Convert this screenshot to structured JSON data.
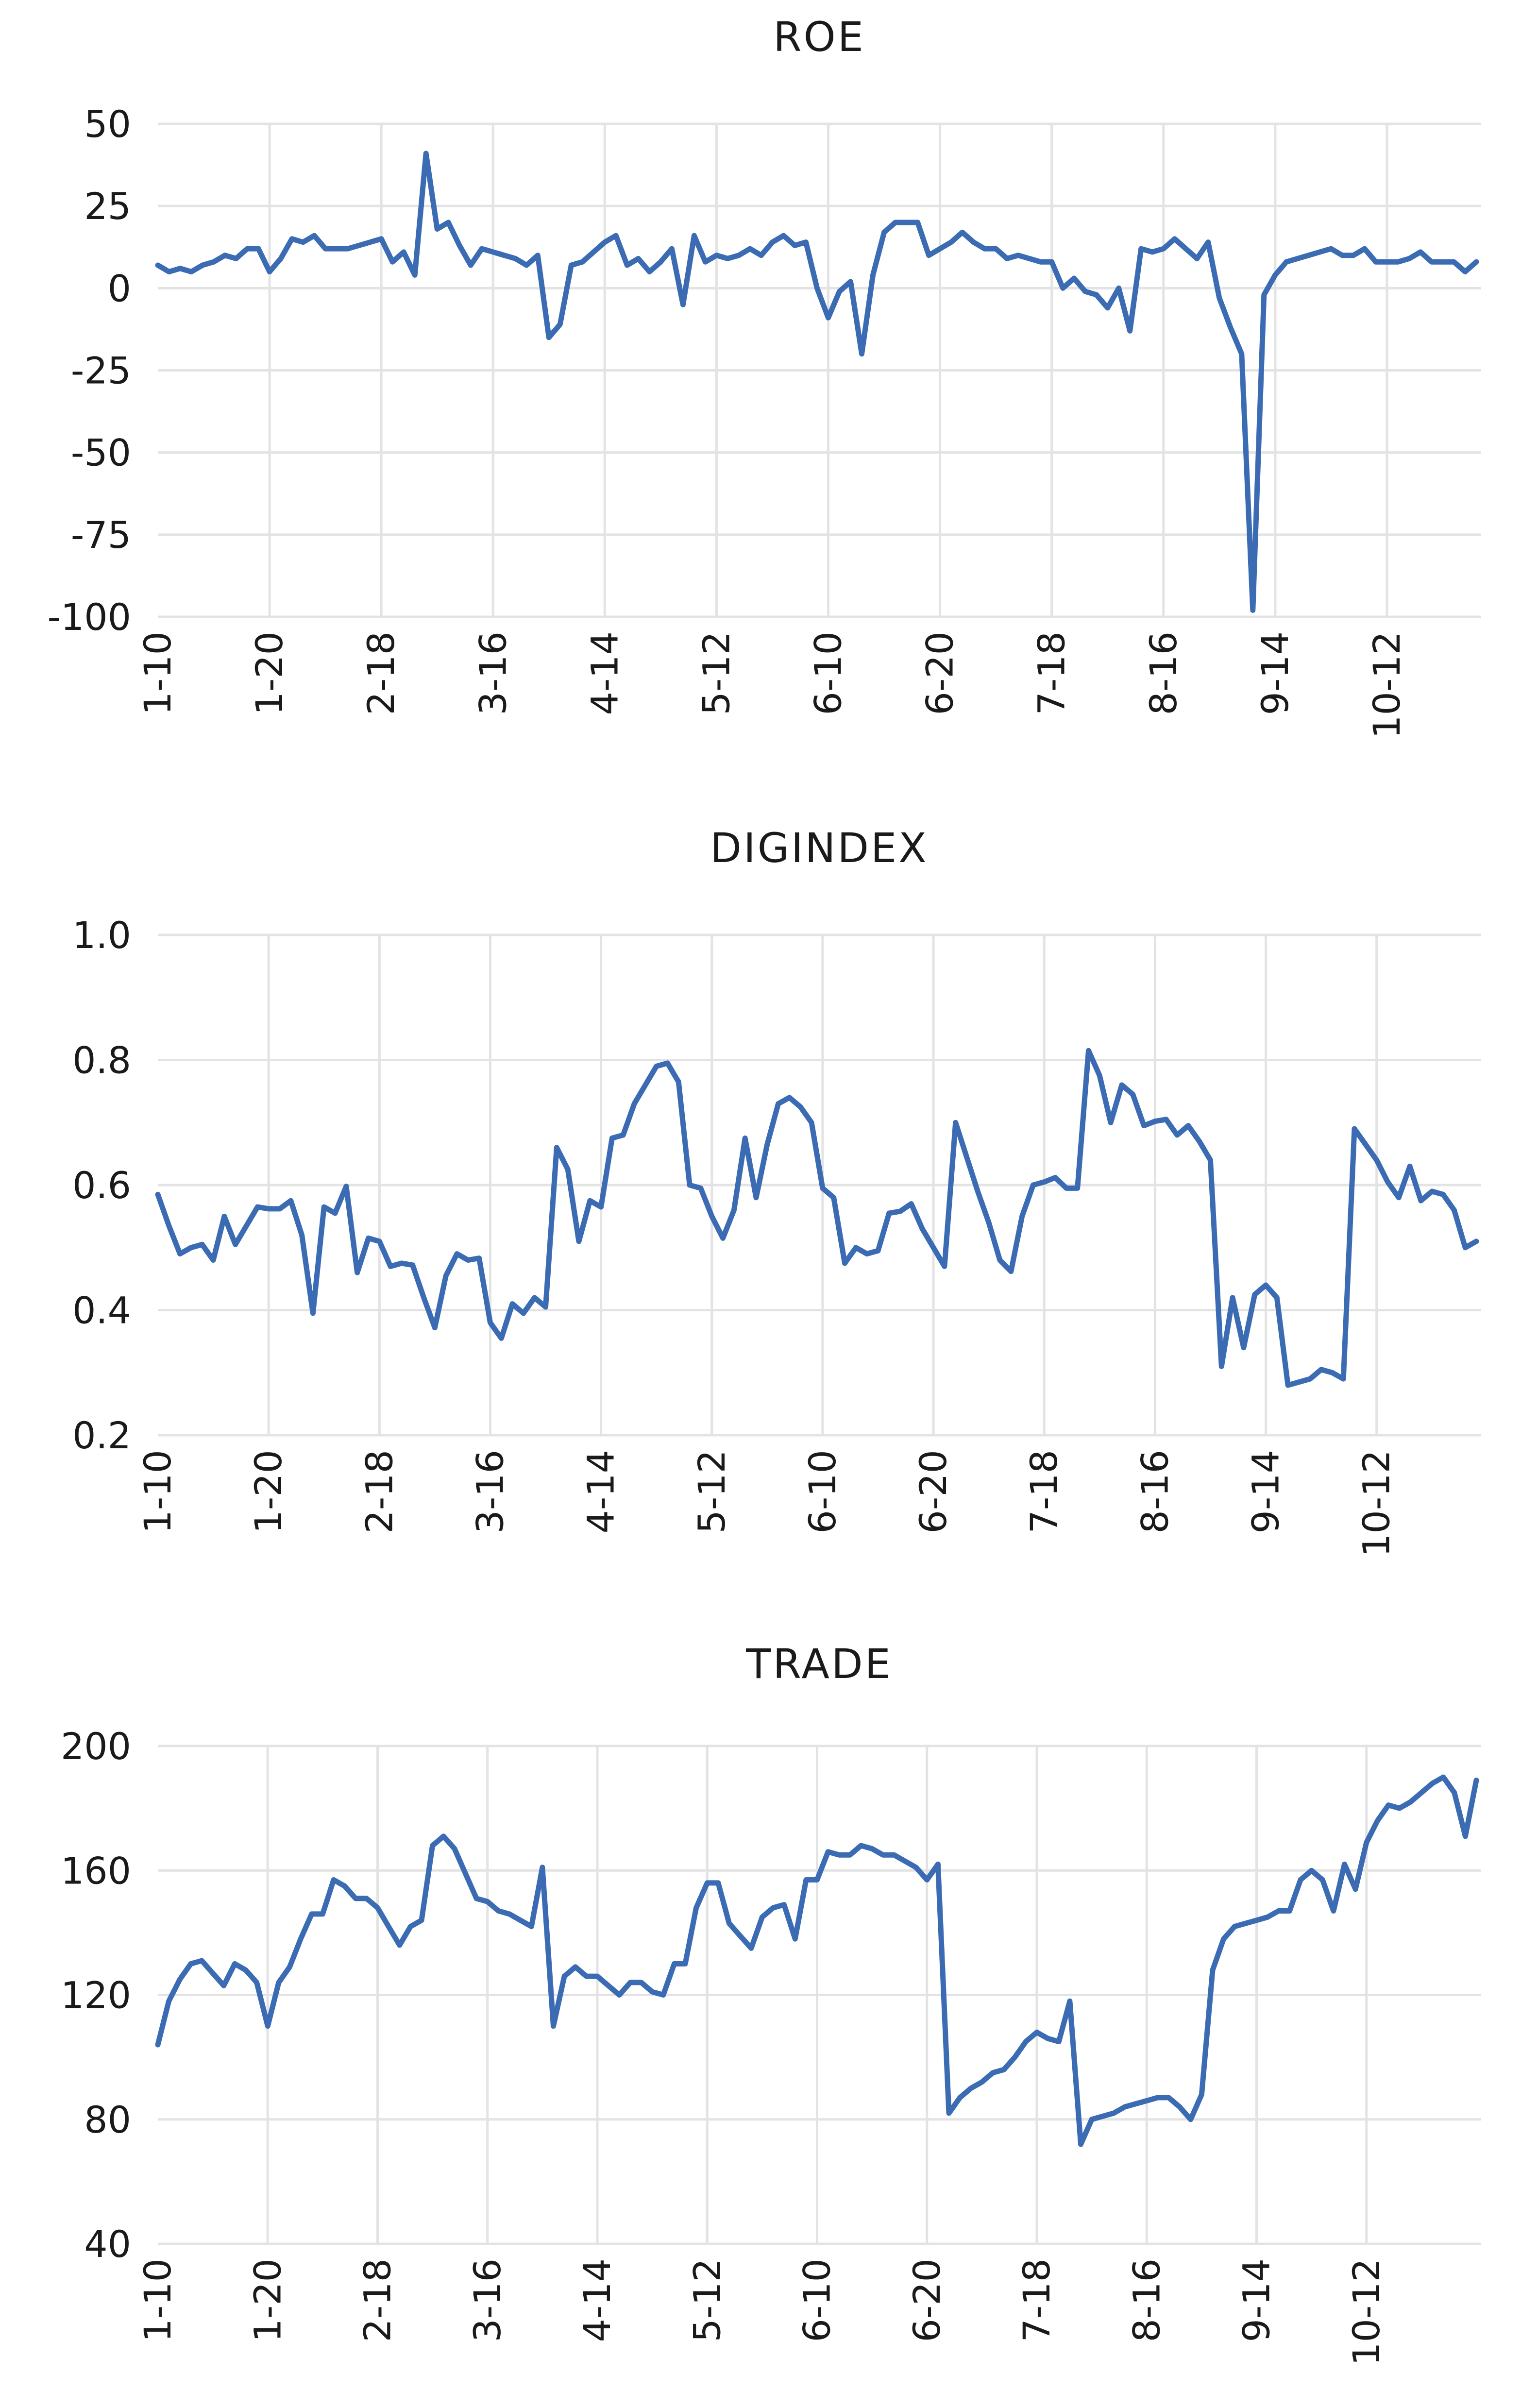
{
  "chart_data": [
    {
      "type": "line",
      "title": "ROE",
      "xlabel": "",
      "ylabel": "",
      "ylim": [
        -100,
        50
      ],
      "yticks": [
        "50",
        "25",
        "0",
        "-25",
        "-50",
        "-75",
        "-100"
      ],
      "ytick_values": [
        50,
        25,
        0,
        -25,
        -50,
        -75,
        -100
      ],
      "xtick_labels": [
        "1-10",
        "1-20",
        "2-18",
        "3-16",
        "4-14",
        "5-12",
        "6-10",
        "6-20",
        "7-18",
        "8-16",
        "9-14",
        "10-12"
      ],
      "xtick_index": [
        0,
        10,
        20,
        30,
        40,
        50,
        60,
        70,
        80,
        90,
        100,
        110
      ],
      "grid": "horizontal and vertical",
      "color": "#3b6bb3",
      "series": [
        {
          "values": [
            7,
            5,
            6,
            5,
            7,
            8,
            10,
            9,
            12,
            12,
            5,
            9,
            15,
            14,
            16,
            12,
            12,
            12,
            13,
            14,
            15,
            8,
            11,
            4,
            41,
            18,
            20,
            13,
            7,
            12,
            11,
            10,
            9,
            7,
            10,
            -15,
            -11,
            7,
            8,
            11,
            14,
            16,
            7,
            9,
            5,
            8,
            12,
            -5,
            16,
            8,
            10,
            9,
            10,
            12,
            10,
            14,
            16,
            13,
            14,
            0,
            -9,
            -1,
            2,
            -20,
            4,
            17,
            20,
            20,
            20,
            10,
            12,
            14,
            17,
            14,
            12,
            12,
            9,
            10,
            9,
            8,
            8,
            0,
            3,
            -1,
            -2,
            -6,
            0,
            -13,
            12,
            11,
            12,
            15,
            12,
            9,
            14,
            -3,
            -12,
            -20,
            -98,
            -2,
            4,
            8,
            9,
            10,
            11,
            12,
            10,
            10,
            12,
            8,
            8,
            8,
            9,
            11,
            8,
            8,
            8,
            5,
            8
          ]
        }
      ]
    },
    {
      "type": "line",
      "title": "DIGINDEX",
      "xlabel": "",
      "ylabel": "",
      "ylim": [
        0.2,
        1.0
      ],
      "yticks": [
        "1.0",
        "0.8",
        "0.6",
        "0.4",
        "0.2"
      ],
      "ytick_values": [
        1.0,
        0.8,
        0.6,
        0.4,
        0.2
      ],
      "xtick_labels": [
        "1-10",
        "1-20",
        "2-18",
        "3-16",
        "4-14",
        "5-12",
        "6-10",
        "6-20",
        "7-18",
        "8-16",
        "9-14",
        "10-12"
      ],
      "xtick_index": [
        0,
        10,
        20,
        30,
        40,
        50,
        60,
        70,
        80,
        90,
        100,
        110
      ],
      "grid": "horizontal and vertical",
      "color": "#3b6bb3",
      "series": [
        {
          "values": [
            0.585,
            0.535,
            0.49,
            0.5,
            0.505,
            0.48,
            0.55,
            0.505,
            0.535,
            0.565,
            0.562,
            0.562,
            0.575,
            0.52,
            0.395,
            0.565,
            0.555,
            0.598,
            0.46,
            0.515,
            0.51,
            0.47,
            0.475,
            0.472,
            0.42,
            0.372,
            0.455,
            0.49,
            0.48,
            0.483,
            0.38,
            0.355,
            0.41,
            0.395,
            0.42,
            0.405,
            0.66,
            0.625,
            0.51,
            0.575,
            0.565,
            0.675,
            0.68,
            0.73,
            0.76,
            0.79,
            0.795,
            0.765,
            0.6,
            0.595,
            0.55,
            0.515,
            0.56,
            0.675,
            0.58,
            0.665,
            0.73,
            0.74,
            0.725,
            0.7,
            0.595,
            0.58,
            0.475,
            0.5,
            0.49,
            0.495,
            0.555,
            0.558,
            0.57,
            0.53,
            0.5,
            0.47,
            0.7,
            0.645,
            0.59,
            0.54,
            0.48,
            0.462,
            0.55,
            0.6,
            0.605,
            0.612,
            0.595,
            0.595,
            0.815,
            0.775,
            0.7,
            0.76,
            0.745,
            0.695,
            0.702,
            0.705,
            0.68,
            0.695,
            0.67,
            0.64,
            0.31,
            0.42,
            0.34,
            0.425,
            0.44,
            0.42,
            0.28,
            0.285,
            0.29,
            0.305,
            0.3,
            0.29,
            0.69,
            0.665,
            0.64,
            0.605,
            0.58,
            0.63,
            0.575,
            0.59,
            0.585,
            0.56,
            0.5,
            0.51
          ]
        }
      ]
    },
    {
      "type": "line",
      "title": "TRADE",
      "xlabel": "",
      "ylabel": "",
      "ylim": [
        40,
        200
      ],
      "yticks": [
        "200",
        "160",
        "120",
        "80",
        "40"
      ],
      "ytick_values": [
        200,
        160,
        120,
        80,
        40
      ],
      "xtick_labels": [
        "1-10",
        "1-20",
        "2-18",
        "3-16",
        "4-14",
        "5-12",
        "6-10",
        "6-20",
        "7-18",
        "8-16",
        "9-14",
        "10-12"
      ],
      "xtick_index": [
        0,
        10,
        20,
        30,
        40,
        50,
        60,
        70,
        80,
        90,
        100,
        110
      ],
      "grid": "horizontal and vertical",
      "color": "#3b6bb3",
      "series": [
        {
          "values": [
            104,
            118,
            125,
            130,
            131,
            127,
            123,
            130,
            128,
            124,
            110,
            124,
            129,
            138,
            146,
            146,
            157,
            155,
            151,
            151,
            148,
            142,
            136,
            142,
            144,
            168,
            171,
            167,
            159,
            151,
            150,
            147,
            146,
            144,
            142,
            161,
            110,
            126,
            129,
            126,
            126,
            123,
            120,
            124,
            124,
            121,
            120,
            130,
            130,
            148,
            156,
            156,
            143,
            139,
            135,
            145,
            148,
            149,
            138,
            157,
            157,
            166,
            165,
            165,
            168,
            167,
            165,
            165,
            163,
            161,
            157,
            162,
            82,
            87,
            90,
            92,
            95,
            96,
            100,
            105,
            108,
            106,
            105,
            118,
            72,
            80,
            81,
            82,
            84,
            85,
            86,
            87,
            87,
            84,
            80,
            88,
            128,
            138,
            142,
            143,
            144,
            145,
            147,
            147,
            157,
            160,
            157,
            147,
            162,
            154,
            169,
            176,
            181,
            180,
            182,
            185,
            188,
            190,
            185,
            171,
            189
          ]
        }
      ]
    }
  ]
}
